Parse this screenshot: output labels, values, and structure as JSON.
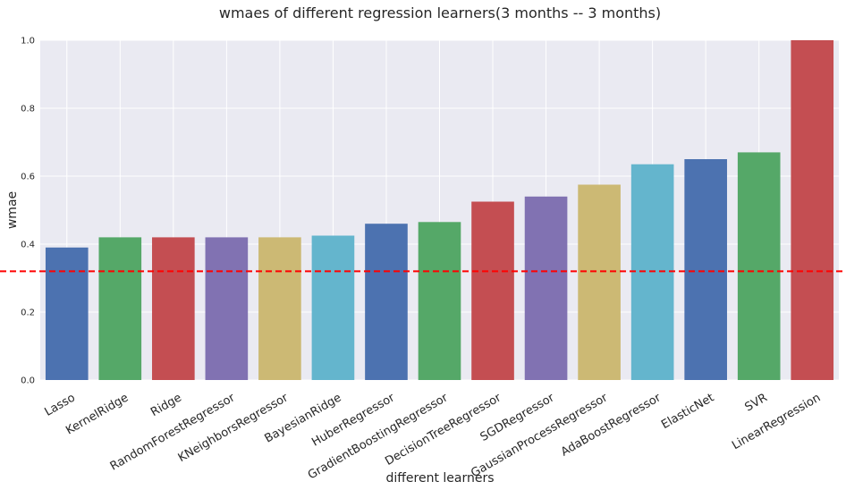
{
  "chart_data": {
    "type": "bar",
    "title": "wmaes of different regression learners(3 months -- 3 months)",
    "xlabel": "different learners",
    "ylabel": "wmae",
    "ylim": [
      0,
      1.0
    ],
    "yticks": [
      "0.0",
      "0.2",
      "0.4",
      "0.6",
      "0.8",
      "1.0"
    ],
    "grid": true,
    "categories": [
      "Lasso",
      "KernelRidge",
      "Ridge",
      "RandomForestRegressor",
      "KNeighborsRegressor",
      "BayesianRidge",
      "HuberRegressor",
      "GradientBoostingRegressor",
      "DecisionTreeRegressor",
      "SGDRegressor",
      "GaussianProcessRegressor",
      "AdaBoostRegressor",
      "ElasticNet",
      "SVR",
      "LinearRegression"
    ],
    "values": [
      0.39,
      0.42,
      0.42,
      0.42,
      0.42,
      0.425,
      0.46,
      0.465,
      0.525,
      0.54,
      0.575,
      0.635,
      0.65,
      0.67,
      1.0
    ],
    "bar_colors": [
      "#4c72b0",
      "#55a868",
      "#c44e52",
      "#8172b2",
      "#ccb974",
      "#64b5cd",
      "#4c72b0",
      "#55a868",
      "#c44e52",
      "#8172b2",
      "#ccb974",
      "#64b5cd",
      "#4c72b0",
      "#55a868",
      "#c44e52"
    ],
    "reference_line": {
      "y": 0.32,
      "color": "#ff0000",
      "style": "dashed"
    },
    "background_color": "#eaeaf2",
    "grid_color": "#ffffff"
  }
}
